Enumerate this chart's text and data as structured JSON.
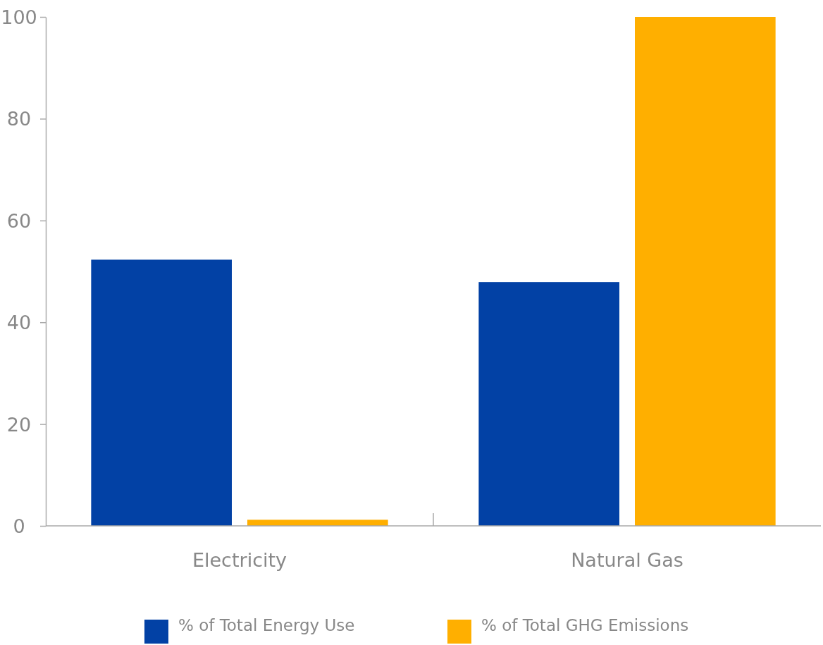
{
  "chart_data": {
    "type": "bar",
    "categories": [
      "Electricity",
      "Natural Gas"
    ],
    "series": [
      {
        "name": "% of Total Energy Use",
        "color": "#0241a5",
        "values": [
          52.3,
          47.9
        ]
      },
      {
        "name": "% of Total GHG Emissions",
        "color": "#ffaf00",
        "values": [
          1.2,
          100
        ]
      }
    ],
    "ylim": [
      0,
      100
    ],
    "yticks": [
      0,
      20,
      40,
      60,
      80,
      100
    ],
    "grid": false,
    "legend": "bottom"
  }
}
